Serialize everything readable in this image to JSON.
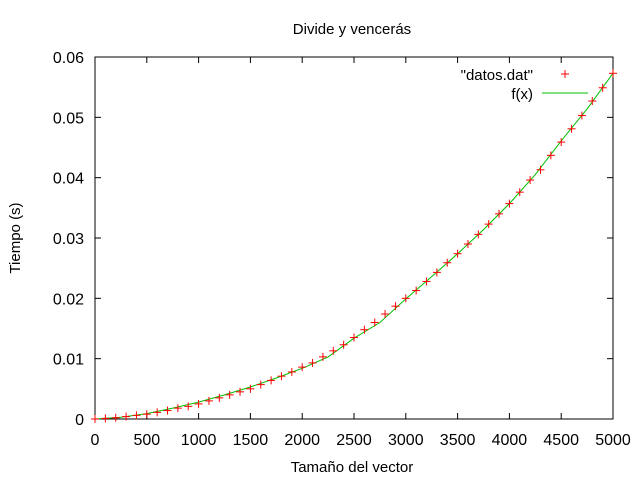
{
  "chart_data": {
    "type": "scatter",
    "title": "Divide y vencerás",
    "xlabel": "Tamaño del vector",
    "ylabel": "Tiempo (s)",
    "xlim": [
      0,
      5000
    ],
    "ylim": [
      0,
      0.06
    ],
    "xticks": [
      "0",
      "500",
      "1000",
      "1500",
      "2000",
      "2500",
      "3000",
      "3500",
      "4000",
      "4500",
      "5000"
    ],
    "yticks": [
      "0",
      "0.01",
      "0.02",
      "0.03",
      "0.04",
      "0.05",
      "0.06"
    ],
    "grid": false,
    "legend_position": "top-right",
    "legend": [
      "\"datos.dat\"",
      "f(x)"
    ],
    "series": [
      {
        "name": "\"datos.dat\"",
        "marker": "+",
        "color": "#ff0000",
        "x": [
          0,
          100,
          200,
          300,
          400,
          500,
          600,
          700,
          800,
          900,
          1000,
          1100,
          1200,
          1300,
          1400,
          1500,
          1600,
          1700,
          1800,
          1900,
          2000,
          2100,
          2200,
          2300,
          2400,
          2500,
          2600,
          2700,
          2800,
          2900,
          3000,
          3100,
          3200,
          3300,
          3400,
          3500,
          3600,
          3700,
          3800,
          3900,
          4000,
          4100,
          4200,
          4300,
          4400,
          4500,
          4600,
          4700,
          4800,
          4900,
          5000
        ],
        "y": [
          0.0,
          0.0001,
          0.0002,
          0.0004,
          0.0006,
          0.0008,
          0.0011,
          0.0014,
          0.0018,
          0.0021,
          0.0025,
          0.003,
          0.0035,
          0.004,
          0.0045,
          0.005,
          0.0057,
          0.0064,
          0.0071,
          0.0078,
          0.0086,
          0.0093,
          0.0103,
          0.0113,
          0.0123,
          0.0135,
          0.0148,
          0.016,
          0.0174,
          0.0187,
          0.02,
          0.0213,
          0.0228,
          0.0243,
          0.0259,
          0.0274,
          0.029,
          0.0306,
          0.0323,
          0.034,
          0.0357,
          0.0376,
          0.0396,
          0.0413,
          0.0437,
          0.0459,
          0.0481,
          0.0503,
          0.0527,
          0.0549,
          0.0573
        ]
      },
      {
        "name": "f(x)",
        "type": "line",
        "color": "#00c000",
        "x": [
          0,
          250,
          500,
          750,
          1000,
          1250,
          1500,
          1750,
          2000,
          2250,
          2500,
          2750,
          3000,
          3250,
          3500,
          3750,
          4000,
          4250,
          4500,
          4750,
          5000
        ],
        "y": [
          0.0,
          0.0003,
          0.0009,
          0.0018,
          0.0028,
          0.004,
          0.0053,
          0.0068,
          0.0084,
          0.0103,
          0.0134,
          0.016,
          0.0199,
          0.0236,
          0.0274,
          0.0314,
          0.0357,
          0.0405,
          0.0461,
          0.0514,
          0.0573
        ]
      }
    ]
  }
}
